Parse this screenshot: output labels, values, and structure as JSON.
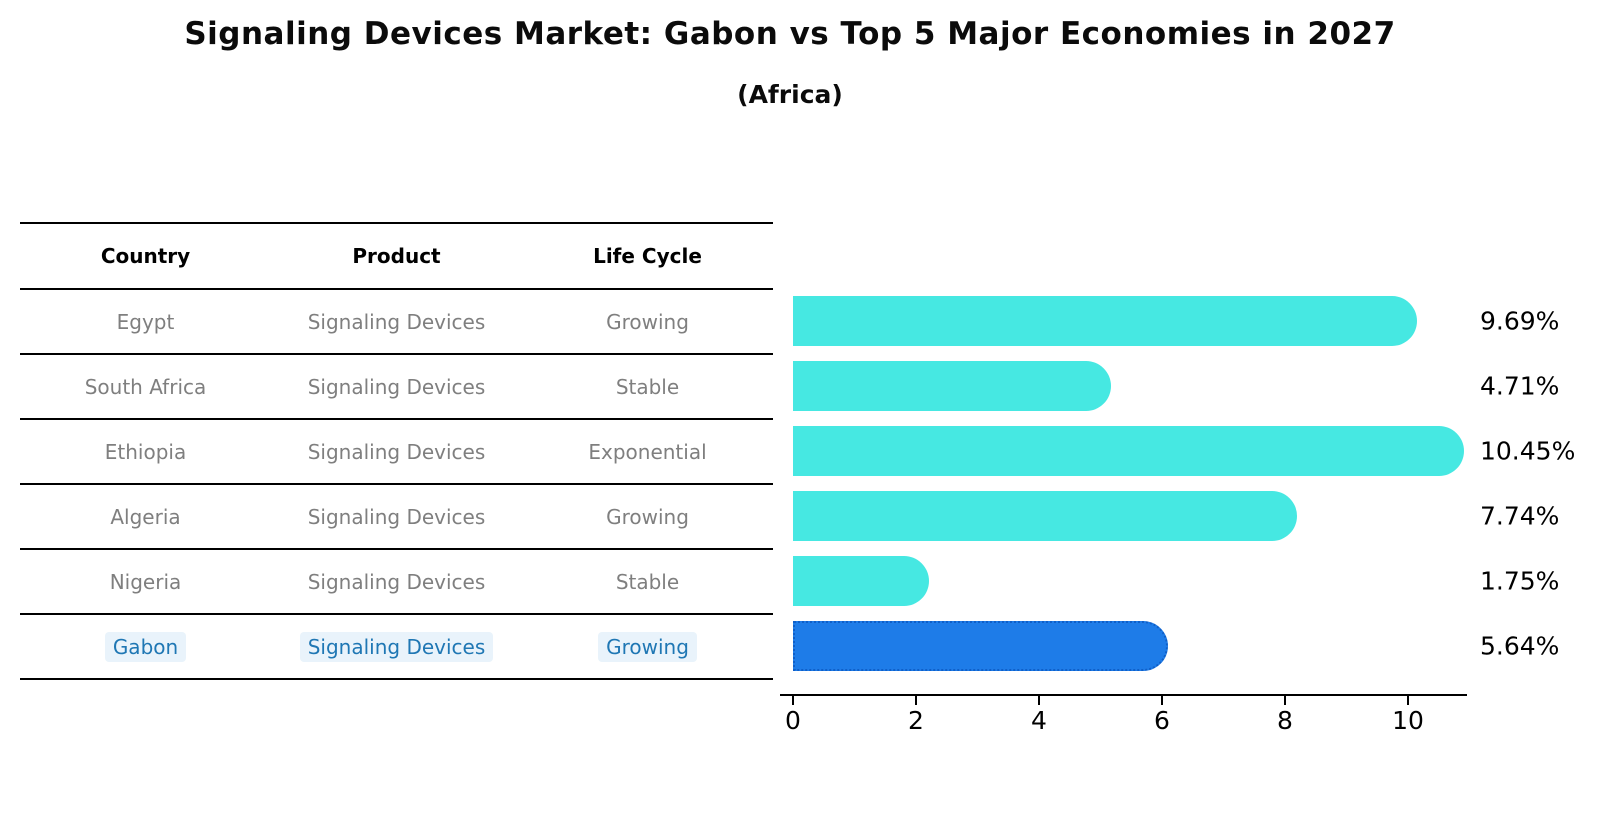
{
  "title": "Signaling Devices Market: Gabon vs Top 5 Major Economies in 2027",
  "subtitle": "(Africa)",
  "table": {
    "headers": [
      "Country",
      "Product",
      "Life Cycle"
    ],
    "rows": [
      {
        "country": "Egypt",
        "product": "Signaling Devices",
        "life_cycle": "Growing"
      },
      {
        "country": "South Africa",
        "product": "Signaling Devices",
        "life_cycle": "Stable"
      },
      {
        "country": "Ethiopia",
        "product": "Signaling Devices",
        "life_cycle": "Exponential"
      },
      {
        "country": "Algeria",
        "product": "Signaling Devices",
        "life_cycle": "Growing"
      },
      {
        "country": "Nigeria",
        "product": "Signaling Devices",
        "life_cycle": "Stable"
      },
      {
        "country": "Gabon",
        "product": "Signaling Devices",
        "life_cycle": "Growing"
      }
    ]
  },
  "chart_data": {
    "type": "bar",
    "orientation": "horizontal",
    "title": "Signaling Devices Market: Gabon vs Top 5 Major Economies in 2027",
    "subtitle": "(Africa)",
    "categories": [
      "Egypt",
      "South Africa",
      "Ethiopia",
      "Algeria",
      "Nigeria",
      "Gabon"
    ],
    "values": [
      9.69,
      4.71,
      10.45,
      7.74,
      1.75,
      5.64
    ],
    "value_labels": [
      "9.69%",
      "4.71%",
      "10.45%",
      "7.74%",
      "1.75%",
      "5.64%"
    ],
    "x_ticks": [
      "0",
      "2",
      "4",
      "6",
      "8",
      "10"
    ],
    "xlim": [
      0,
      10.96
    ],
    "xlabel": "",
    "ylabel": "",
    "grid": false,
    "legend": false,
    "bar_color": "#46e8e2",
    "highlight_bar_color": "#1e7ce8",
    "highlight_border_color": "#0f5fc8",
    "highlight_index": 5,
    "highlight_text_color": "#1f77b4",
    "table_text_color": "#7f7f7f"
  }
}
